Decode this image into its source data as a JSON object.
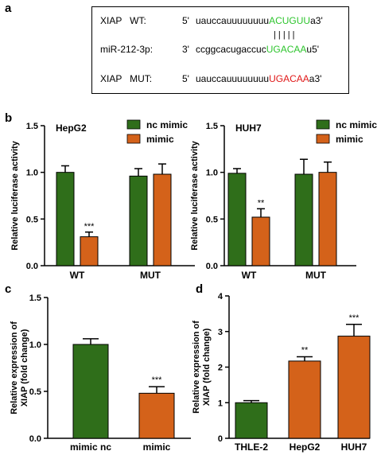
{
  "panel_labels": {
    "a": "a",
    "b": "b",
    "c": "c",
    "d": "d"
  },
  "colors": {
    "green": "#2f6e1a",
    "orange": "#d4621a",
    "seed_green": "#2ec52e",
    "seed_red": "#e01818"
  },
  "sequence_panel": {
    "wt": {
      "name": "XIAP   WT:",
      "prime": "5'",
      "prefix": "uauccauuuuuuuu",
      "seed": "ACUGUU",
      "suffix": "a3'"
    },
    "pairing": "|  |  |  |  |",
    "mir": {
      "name": "miR-212-3p:",
      "prime": "3'",
      "prefix": "ccggcacugaccuc",
      "seed": "UGACAA",
      "suffix": "u5'"
    },
    "mut": {
      "name": "XIAP   MUT:",
      "prime": "5'",
      "prefix": "uauccauuuuuuuu",
      "seed": "UGACAA",
      "suffix": "a3'"
    }
  },
  "chart_data": [
    {
      "id": "b-hepg2",
      "type": "bar",
      "title": "HepG2",
      "ylabel": "Relative luciferase activity",
      "ylim": [
        0,
        1.5
      ],
      "yticks": [
        "0.0",
        "0.5",
        "1.0",
        "1.5"
      ],
      "categories": [
        "WT",
        "MUT"
      ],
      "series": [
        {
          "name": "nc mimic",
          "values": [
            1.0,
            0.96
          ],
          "errors": [
            0.07,
            0.08
          ],
          "sig": [
            "",
            ""
          ]
        },
        {
          "name": "mimic",
          "values": [
            0.31,
            0.98
          ],
          "errors": [
            0.05,
            0.11
          ],
          "sig": [
            "***",
            ""
          ]
        }
      ]
    },
    {
      "id": "b-huh7",
      "type": "bar",
      "title": "HUH7",
      "ylabel": "Relative luciferase activity",
      "ylim": [
        0,
        1.5
      ],
      "yticks": [
        "0.0",
        "0.5",
        "1.0",
        "1.5"
      ],
      "categories": [
        "WT",
        "MUT"
      ],
      "series": [
        {
          "name": "nc mimic",
          "values": [
            0.99,
            0.98
          ],
          "errors": [
            0.05,
            0.16
          ],
          "sig": [
            "",
            ""
          ]
        },
        {
          "name": "mimic",
          "values": [
            0.52,
            1.0
          ],
          "errors": [
            0.09,
            0.11
          ],
          "sig": [
            "**",
            ""
          ]
        }
      ]
    },
    {
      "id": "c",
      "type": "bar",
      "title": "",
      "ylabel": "Relative expression of XIAP (fold change)",
      "ylim": [
        0,
        1.5
      ],
      "yticks": [
        "0.0",
        "0.5",
        "1.0",
        "1.5"
      ],
      "categories": [
        "mimic nc",
        "mimic"
      ],
      "values": [
        1.0,
        0.48
      ],
      "errors": [
        0.06,
        0.07
      ],
      "sig": [
        "",
        "***"
      ]
    },
    {
      "id": "d",
      "type": "bar",
      "title": "",
      "ylabel": "Relative expression of XIAP (fold change)",
      "ylim": [
        0,
        4
      ],
      "yticks": [
        "0",
        "1",
        "2",
        "3",
        "4"
      ],
      "categories": [
        "THLE-2",
        "HepG2",
        "HUH7"
      ],
      "values": [
        1.0,
        2.17,
        2.87
      ],
      "errors": [
        0.06,
        0.12,
        0.33
      ],
      "sig": [
        "",
        "**",
        "***"
      ]
    }
  ]
}
